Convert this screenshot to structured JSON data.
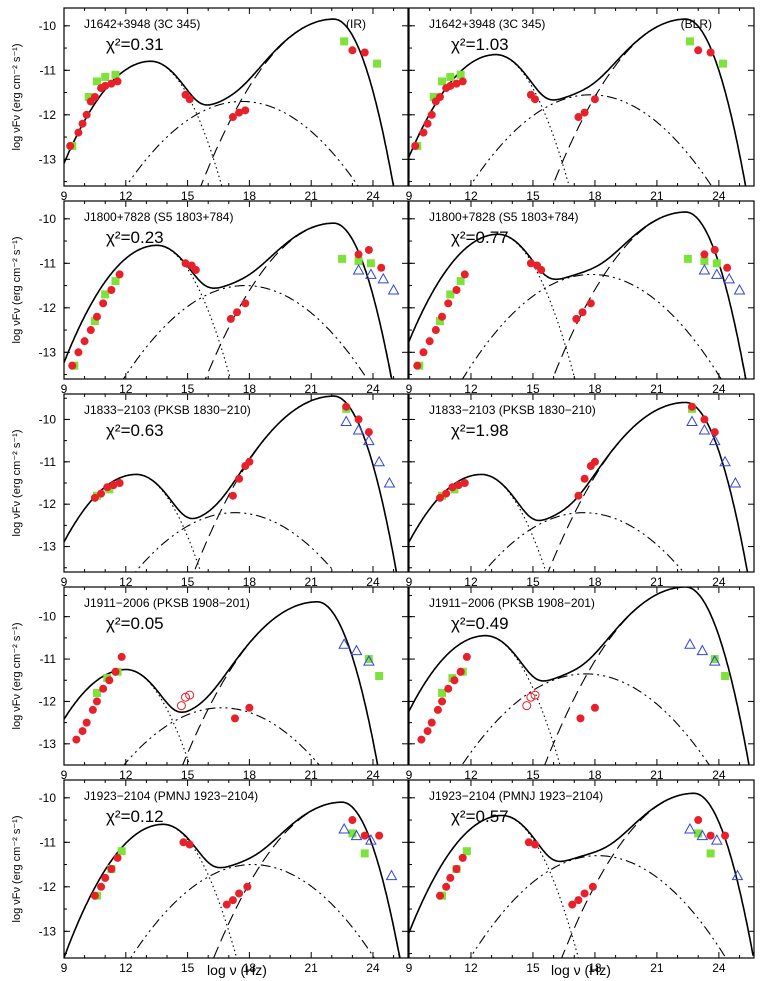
{
  "figure": {
    "xlabel": "log ν  (Hz)",
    "ylabel": "log νFν (erg cm⁻² s⁻¹)",
    "x_ticks": [
      "9",
      "12",
      "15",
      "18",
      "21",
      "24"
    ],
    "y_ticks": [
      "-10",
      "-11",
      "-12",
      "-13"
    ]
  },
  "colors": {
    "ir_data": "#e8202a",
    "fermi": "#7de23a",
    "triangle": "#3046d8",
    "curve": "#000000"
  },
  "chart_data": [
    {
      "type": "scatter",
      "source": "J1642+3948 (3C 345)",
      "label": "(IR)",
      "chi2": "0.31",
      "xlim": [
        9,
        25.7
      ],
      "ylim": [
        -13.6,
        -9.6
      ],
      "synchrotron_peak": [
        13.2,
        -10.8
      ],
      "ic_peak": [
        22.1,
        -9.85
      ],
      "red_points": [
        [
          9.3,
          -12.7
        ],
        [
          9.7,
          -12.4
        ],
        [
          9.9,
          -12.2
        ],
        [
          10.1,
          -12.0
        ],
        [
          10.3,
          -11.7
        ],
        [
          10.5,
          -11.6
        ],
        [
          10.8,
          -11.4
        ],
        [
          11.0,
          -11.35
        ],
        [
          11.3,
          -11.3
        ],
        [
          11.6,
          -11.25
        ],
        [
          14.9,
          -11.55
        ],
        [
          15.1,
          -11.65
        ],
        [
          17.2,
          -12.05
        ],
        [
          17.5,
          -11.95
        ],
        [
          17.8,
          -11.9
        ],
        [
          23.0,
          -10.55
        ],
        [
          23.6,
          -10.6
        ]
      ],
      "green_points": [
        [
          9.4,
          -12.7
        ],
        [
          10.2,
          -11.6
        ],
        [
          10.6,
          -11.25
        ],
        [
          11.0,
          -11.15
        ],
        [
          11.5,
          -11.1
        ],
        [
          22.6,
          -10.35
        ],
        [
          24.2,
          -10.85
        ]
      ],
      "blue_triangles": []
    },
    {
      "type": "scatter",
      "source": "J1642+3948 (3C 345)",
      "label": "(BLR)",
      "chi2": "1.03",
      "xlim": [
        9,
        25.7
      ],
      "ylim": [
        -13.6,
        -9.6
      ],
      "synchrotron_peak": [
        13.2,
        -10.65
      ],
      "ic_peak": [
        22.4,
        -9.85
      ],
      "red_points": [
        [
          9.3,
          -12.7
        ],
        [
          9.7,
          -12.4
        ],
        [
          9.9,
          -12.2
        ],
        [
          10.1,
          -12.0
        ],
        [
          10.3,
          -11.7
        ],
        [
          10.5,
          -11.6
        ],
        [
          10.8,
          -11.4
        ],
        [
          11.0,
          -11.35
        ],
        [
          11.3,
          -11.3
        ],
        [
          11.6,
          -11.25
        ],
        [
          14.9,
          -11.55
        ],
        [
          15.1,
          -11.65
        ],
        [
          17.2,
          -12.05
        ],
        [
          17.5,
          -11.95
        ],
        [
          18.0,
          -11.65
        ],
        [
          23.0,
          -10.55
        ],
        [
          23.6,
          -10.6
        ]
      ],
      "green_points": [
        [
          9.4,
          -12.7
        ],
        [
          10.2,
          -11.6
        ],
        [
          10.6,
          -11.25
        ],
        [
          11.0,
          -11.15
        ],
        [
          11.5,
          -11.1
        ],
        [
          22.6,
          -10.35
        ],
        [
          24.2,
          -10.85
        ]
      ],
      "blue_triangles": []
    },
    {
      "type": "scatter",
      "source": "J1800+7828 (S5 1803+784)",
      "label": "",
      "chi2": "0.23",
      "xlim": [
        9,
        25.7
      ],
      "ylim": [
        -13.6,
        -9.6
      ],
      "synchrotron_peak": [
        13.5,
        -10.6
      ],
      "ic_peak": [
        22.1,
        -10.1
      ],
      "red_points": [
        [
          9.4,
          -13.3
        ],
        [
          9.7,
          -13.0
        ],
        [
          10.0,
          -12.75
        ],
        [
          10.3,
          -12.5
        ],
        [
          10.6,
          -12.2
        ],
        [
          10.9,
          -11.9
        ],
        [
          11.3,
          -11.6
        ],
        [
          11.7,
          -11.25
        ],
        [
          14.9,
          -11.0
        ],
        [
          15.2,
          -11.05
        ],
        [
          15.4,
          -11.15
        ],
        [
          17.1,
          -12.25
        ],
        [
          17.4,
          -12.1
        ],
        [
          17.8,
          -11.9
        ],
        [
          23.3,
          -10.8
        ],
        [
          23.8,
          -10.7
        ],
        [
          24.4,
          -11.1
        ]
      ],
      "green_points": [
        [
          9.5,
          -13.3
        ],
        [
          10.5,
          -12.3
        ],
        [
          11.0,
          -11.7
        ],
        [
          11.5,
          -11.4
        ],
        [
          22.5,
          -10.9
        ],
        [
          23.3,
          -10.95
        ],
        [
          23.9,
          -11.0
        ]
      ],
      "blue_triangles": [
        [
          23.3,
          -11.15
        ],
        [
          23.9,
          -11.25
        ],
        [
          24.5,
          -11.35
        ],
        [
          25.0,
          -11.6
        ]
      ]
    },
    {
      "type": "scatter",
      "source": "J1800+7828 (S5 1803+784)",
      "label": "",
      "chi2": "0.77",
      "xlim": [
        9,
        25.7
      ],
      "ylim": [
        -13.6,
        -9.6
      ],
      "synchrotron_peak": [
        13.3,
        -10.35
      ],
      "ic_peak": [
        22.4,
        -9.85
      ],
      "red_points": [
        [
          9.4,
          -13.3
        ],
        [
          9.7,
          -13.0
        ],
        [
          10.0,
          -12.75
        ],
        [
          10.3,
          -12.5
        ],
        [
          10.6,
          -12.2
        ],
        [
          10.9,
          -11.9
        ],
        [
          11.3,
          -11.6
        ],
        [
          11.7,
          -11.25
        ],
        [
          14.9,
          -11.0
        ],
        [
          15.2,
          -11.05
        ],
        [
          15.4,
          -11.15
        ],
        [
          17.1,
          -12.25
        ],
        [
          17.4,
          -12.1
        ],
        [
          17.8,
          -11.9
        ],
        [
          23.3,
          -10.8
        ],
        [
          23.8,
          -10.7
        ],
        [
          24.4,
          -11.1
        ]
      ],
      "green_points": [
        [
          9.5,
          -13.3
        ],
        [
          10.5,
          -12.3
        ],
        [
          11.0,
          -11.7
        ],
        [
          11.5,
          -11.4
        ],
        [
          22.5,
          -10.9
        ],
        [
          23.3,
          -10.95
        ],
        [
          23.9,
          -11.0
        ]
      ],
      "blue_triangles": [
        [
          23.3,
          -11.15
        ],
        [
          23.9,
          -11.25
        ],
        [
          24.5,
          -11.35
        ],
        [
          25.0,
          -11.6
        ]
      ]
    },
    {
      "type": "scatter",
      "source": "J1833−2103 (PKSB 1830−210)",
      "label": "",
      "chi2": "0.63",
      "xlim": [
        9,
        25.7
      ],
      "ylim": [
        -13.6,
        -9.4
      ],
      "synchrotron_peak": [
        12.5,
        -11.3
      ],
      "ic_peak": [
        22.1,
        -9.45
      ],
      "red_points": [
        [
          10.5,
          -11.85
        ],
        [
          10.8,
          -11.75
        ],
        [
          11.1,
          -11.6
        ],
        [
          11.4,
          -11.55
        ],
        [
          11.7,
          -11.5
        ],
        [
          17.2,
          -11.8
        ],
        [
          17.5,
          -11.4
        ],
        [
          17.8,
          -11.1
        ],
        [
          18.0,
          -11.0
        ],
        [
          22.7,
          -9.7
        ],
        [
          23.3,
          -10.0
        ],
        [
          23.8,
          -10.3
        ]
      ],
      "green_points": [
        [
          10.6,
          -11.8
        ],
        [
          11.2,
          -11.65
        ],
        [
          22.7,
          -9.75
        ]
      ],
      "blue_triangles": [
        [
          22.7,
          -10.05
        ],
        [
          23.3,
          -10.25
        ],
        [
          23.8,
          -10.5
        ],
        [
          24.3,
          -11.0
        ],
        [
          24.8,
          -11.5
        ]
      ]
    },
    {
      "type": "scatter",
      "source": "J1833−2103 (PKSB 1830−210)",
      "label": "",
      "chi2": "1.98",
      "xlim": [
        9,
        25.7
      ],
      "ylim": [
        -13.6,
        -9.4
      ],
      "synchrotron_peak": [
        12.5,
        -11.3
      ],
      "ic_peak": [
        22.4,
        -9.6
      ],
      "red_points": [
        [
          10.5,
          -11.85
        ],
        [
          10.8,
          -11.75
        ],
        [
          11.1,
          -11.6
        ],
        [
          11.4,
          -11.55
        ],
        [
          11.7,
          -11.5
        ],
        [
          17.2,
          -11.8
        ],
        [
          17.5,
          -11.4
        ],
        [
          17.8,
          -11.1
        ],
        [
          18.0,
          -11.0
        ],
        [
          22.7,
          -9.7
        ],
        [
          23.3,
          -10.0
        ],
        [
          23.8,
          -10.3
        ]
      ],
      "green_points": [
        [
          10.6,
          -11.8
        ],
        [
          11.2,
          -11.65
        ],
        [
          22.7,
          -9.75
        ]
      ],
      "blue_triangles": [
        [
          22.7,
          -10.05
        ],
        [
          23.3,
          -10.25
        ],
        [
          23.8,
          -10.5
        ],
        [
          24.3,
          -11.0
        ],
        [
          24.8,
          -11.5
        ]
      ]
    },
    {
      "type": "scatter",
      "source": "J1911−2006 (PKSB 1908−201)",
      "label": "",
      "chi2": "0.05",
      "xlim": [
        9,
        25.7
      ],
      "ylim": [
        -13.5,
        -9.3
      ],
      "synchrotron_peak": [
        12.0,
        -11.25
      ],
      "ic_peak": [
        21.3,
        -9.65
      ],
      "red_points": [
        [
          9.6,
          -12.9
        ],
        [
          9.9,
          -12.7
        ],
        [
          10.1,
          -12.5
        ],
        [
          10.4,
          -12.2
        ],
        [
          10.6,
          -12.0
        ],
        [
          10.9,
          -11.7
        ],
        [
          11.2,
          -11.5
        ],
        [
          11.5,
          -11.3
        ],
        [
          11.8,
          -10.95
        ],
        [
          17.3,
          -12.4
        ],
        [
          18.0,
          -12.15
        ]
      ],
      "green_points": [
        [
          10.6,
          -11.8
        ],
        [
          11.1,
          -11.45
        ],
        [
          11.6,
          -11.3
        ],
        [
          23.8,
          -11.0
        ],
        [
          24.3,
          -11.4
        ]
      ],
      "blue_triangles": [
        [
          22.6,
          -10.65
        ],
        [
          23.2,
          -10.8
        ],
        [
          23.8,
          -11.05
        ]
      ],
      "open_red": [
        [
          14.7,
          -12.1
        ],
        [
          14.9,
          -11.9
        ],
        [
          15.1,
          -11.85
        ]
      ]
    },
    {
      "type": "scatter",
      "source": "J1911−2006 (PKSB 1908−201)",
      "label": "",
      "chi2": "0.49",
      "xlim": [
        9,
        25.7
      ],
      "ylim": [
        -13.5,
        -9.3
      ],
      "synchrotron_peak": [
        12.7,
        -10.45
      ],
      "ic_peak": [
        22.4,
        -9.3
      ],
      "red_points": [
        [
          9.6,
          -12.9
        ],
        [
          9.9,
          -12.7
        ],
        [
          10.1,
          -12.5
        ],
        [
          10.4,
          -12.2
        ],
        [
          10.6,
          -12.0
        ],
        [
          10.9,
          -11.7
        ],
        [
          11.2,
          -11.5
        ],
        [
          11.5,
          -11.3
        ],
        [
          11.8,
          -10.95
        ],
        [
          17.3,
          -12.4
        ],
        [
          18.0,
          -12.15
        ]
      ],
      "green_points": [
        [
          10.6,
          -11.8
        ],
        [
          11.1,
          -11.45
        ],
        [
          11.6,
          -11.3
        ],
        [
          23.8,
          -11.0
        ],
        [
          24.3,
          -11.4
        ]
      ],
      "blue_triangles": [
        [
          22.6,
          -10.65
        ],
        [
          23.2,
          -10.8
        ],
        [
          23.8,
          -11.05
        ]
      ],
      "open_red": [
        [
          14.7,
          -12.1
        ],
        [
          14.9,
          -11.9
        ],
        [
          15.1,
          -11.85
        ]
      ]
    },
    {
      "type": "scatter",
      "source": "J1923−2104 (PMNJ 1923−2104)",
      "label": "",
      "chi2": "0.12",
      "xlim": [
        9,
        25.7
      ],
      "ylim": [
        -13.6,
        -9.6
      ],
      "synchrotron_peak": [
        13.8,
        -10.6
      ],
      "ic_peak": [
        22.5,
        -10.1
      ],
      "red_points": [
        [
          10.5,
          -12.2
        ],
        [
          10.8,
          -12.0
        ],
        [
          11.0,
          -11.8
        ],
        [
          11.3,
          -11.6
        ],
        [
          11.6,
          -11.35
        ],
        [
          14.8,
          -11.0
        ],
        [
          15.1,
          -11.05
        ],
        [
          16.9,
          -12.4
        ],
        [
          17.2,
          -12.3
        ],
        [
          17.5,
          -12.15
        ],
        [
          17.9,
          -12.0
        ],
        [
          23.0,
          -10.5
        ],
        [
          23.6,
          -10.85
        ],
        [
          24.3,
          -10.85
        ]
      ],
      "green_points": [
        [
          10.6,
          -12.2
        ],
        [
          11.3,
          -11.6
        ],
        [
          11.8,
          -11.2
        ],
        [
          23.0,
          -10.8
        ],
        [
          23.6,
          -11.25
        ]
      ],
      "blue_triangles": [
        [
          22.6,
          -10.7
        ],
        [
          23.2,
          -10.85
        ],
        [
          23.9,
          -10.95
        ],
        [
          24.9,
          -11.75
        ]
      ]
    },
    {
      "type": "scatter",
      "source": "J1923−2104 (PMNJ 1923−2104)",
      "label": "",
      "chi2": "0.57",
      "xlim": [
        9,
        25.7
      ],
      "ylim": [
        -13.6,
        -9.6
      ],
      "synchrotron_peak": [
        13.5,
        -10.4
      ],
      "ic_peak": [
        22.8,
        -9.9
      ],
      "red_points": [
        [
          10.5,
          -12.2
        ],
        [
          10.8,
          -12.0
        ],
        [
          11.0,
          -11.8
        ],
        [
          11.3,
          -11.6
        ],
        [
          11.6,
          -11.35
        ],
        [
          14.8,
          -11.0
        ],
        [
          15.1,
          -11.05
        ],
        [
          16.9,
          -12.4
        ],
        [
          17.2,
          -12.3
        ],
        [
          17.5,
          -12.15
        ],
        [
          17.9,
          -12.0
        ],
        [
          23.0,
          -10.5
        ],
        [
          23.6,
          -10.85
        ],
        [
          24.3,
          -10.85
        ]
      ],
      "green_points": [
        [
          10.6,
          -12.2
        ],
        [
          11.3,
          -11.6
        ],
        [
          11.8,
          -11.2
        ],
        [
          23.0,
          -10.8
        ],
        [
          23.6,
          -11.25
        ]
      ],
      "blue_triangles": [
        [
          22.6,
          -10.7
        ],
        [
          23.2,
          -10.85
        ],
        [
          23.9,
          -10.95
        ],
        [
          24.9,
          -11.75
        ]
      ]
    }
  ]
}
